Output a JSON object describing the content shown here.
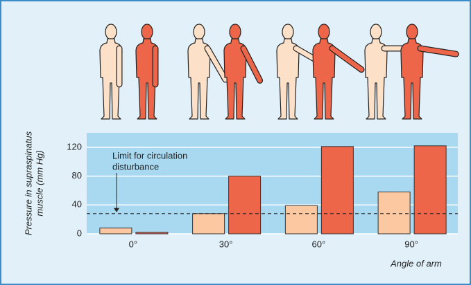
{
  "chart_data": {
    "type": "bar",
    "y_label": [
      "Pressure in supraspinatus",
      "muscle (mm Hg)"
    ],
    "x_label": "Angle of arm",
    "categories": [
      "0°",
      "30°",
      "60°",
      "90°"
    ],
    "series": [
      {
        "color": "#fcc8a2",
        "values": [
          8,
          28,
          39,
          58
        ]
      },
      {
        "color": "#ee6649",
        "values": [
          2,
          80,
          121,
          122
        ]
      }
    ],
    "ylim": [
      0,
      140
    ],
    "yticks": [
      0,
      40,
      80,
      120
    ],
    "grid": true,
    "limit": {
      "label": [
        "Limit for circulation",
        "disturbance"
      ],
      "value": 28
    }
  }
}
